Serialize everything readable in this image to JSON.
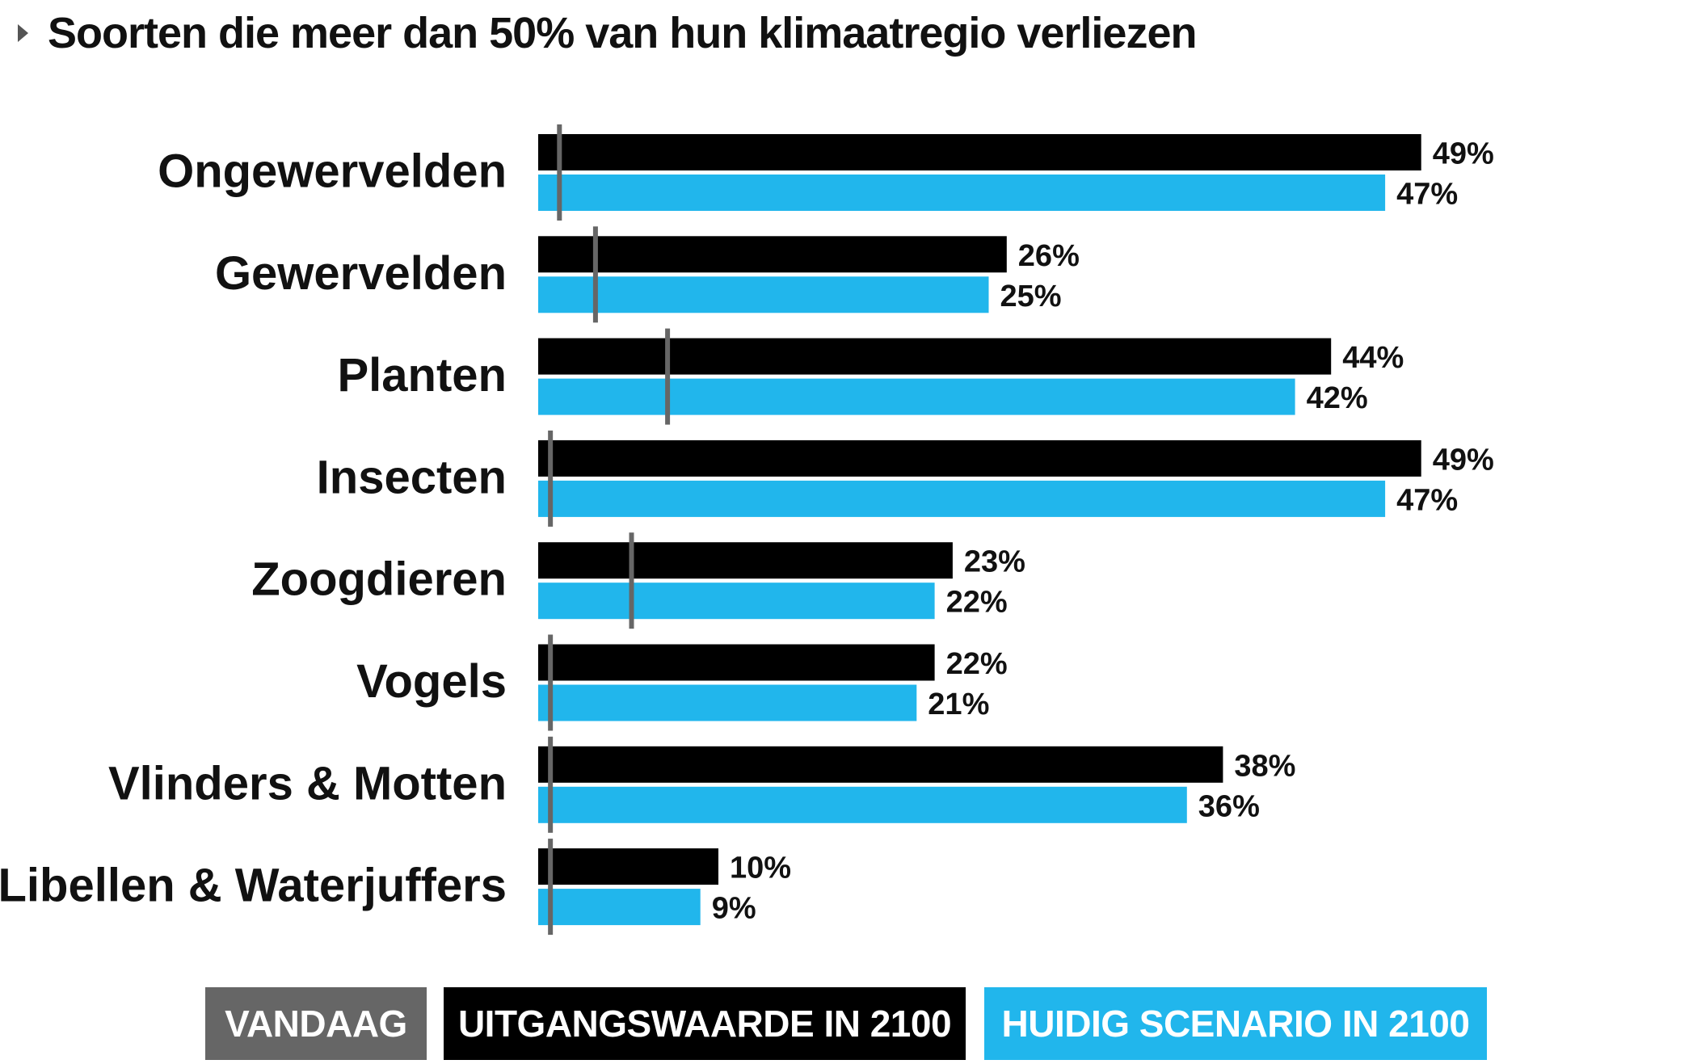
{
  "title": "Soorten die meer dan 50% van hun klimaatregio verliezen",
  "colors": {
    "today": "#666666",
    "baseline": "#000000",
    "current": "#21b6ec",
    "background": "#ffffff"
  },
  "chart_data": {
    "type": "bar",
    "orientation": "horizontal",
    "title": "Soorten die meer dan 50% van hun klimaatregio verliezen",
    "categories": [
      "Ongewervelden",
      "Gewervelden",
      "Planten",
      "Insecten",
      "Zoogdieren",
      "Vogels",
      "Vlinders & Motten",
      "Libellen & Waterjuffers"
    ],
    "series": [
      {
        "name": "VANDAAG",
        "color": "#666666",
        "marker": "tick",
        "values": [
          1,
          3,
          7,
          0.5,
          5,
          0.5,
          0.5,
          0.5
        ]
      },
      {
        "name": "UITGANGSWAARDE IN 2100",
        "color": "#000000",
        "values": [
          49,
          26,
          44,
          49,
          23,
          22,
          38,
          10
        ],
        "labels": [
          "49%",
          "26%",
          "44%",
          "49%",
          "23%",
          "22%",
          "38%",
          "10%"
        ]
      },
      {
        "name": "HUIDIG SCENARIO IN 2100",
        "color": "#21b6ec",
        "values": [
          47,
          25,
          42,
          47,
          22,
          21,
          36,
          9
        ],
        "labels": [
          "47%",
          "25%",
          "42%",
          "47%",
          "22%",
          "21%",
          "36%",
          "9%"
        ]
      }
    ],
    "xlim": [
      0,
      50
    ],
    "grid": false,
    "legend_position": "bottom"
  }
}
